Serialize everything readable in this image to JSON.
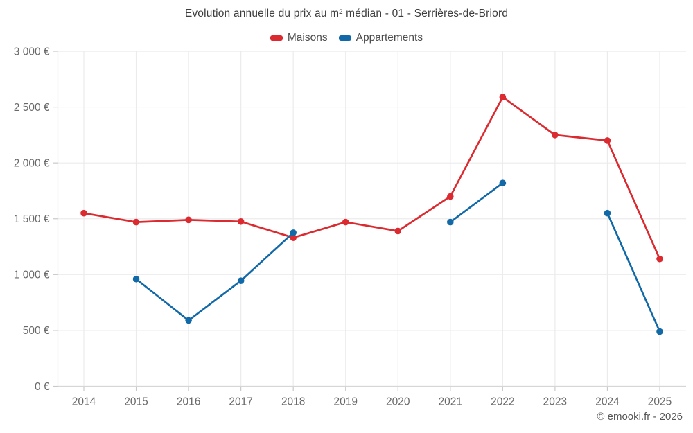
{
  "page": {
    "title": "Evolution annuelle du prix au m² médian - 01 - Serrières-de-Briord",
    "footer": "© emooki.fr - 2026"
  },
  "chart_data": {
    "type": "line",
    "title": "Evolution annuelle du prix au m² médian - 01 - Serrières-de-Briord",
    "categories": [
      "2014",
      "2015",
      "2016",
      "2017",
      "2018",
      "2019",
      "2020",
      "2021",
      "2022",
      "2023",
      "2024",
      "2025"
    ],
    "series": [
      {
        "name": "Maisons",
        "color": "#db2b30",
        "values": [
          1550,
          1470,
          1490,
          1475,
          1330,
          1470,
          1390,
          1700,
          2590,
          2250,
          2200,
          1140
        ]
      },
      {
        "name": "Appartements",
        "color": "#1269a8",
        "values": [
          null,
          960,
          590,
          945,
          1375,
          null,
          null,
          1470,
          1820,
          null,
          1550,
          490
        ]
      }
    ],
    "y_axis": {
      "min": 0,
      "max": 3000,
      "step": 500,
      "unit": "€",
      "tick_labels": [
        "0 €",
        "500 €",
        "1 000 €",
        "1 500 €",
        "2 000 €",
        "2 500 €",
        "3 000 €"
      ]
    },
    "x_axis": {
      "label": "",
      "tick_labels": [
        "2014",
        "2015",
        "2016",
        "2017",
        "2018",
        "2019",
        "2020",
        "2021",
        "2022",
        "2023",
        "2024",
        "2025"
      ]
    },
    "grid": true,
    "legend_position": "top"
  },
  "colors": {
    "background": "#ffffff",
    "grid": "#ebebeb",
    "axis": "#d6d6d6",
    "tick": "#c9c9c9",
    "tick_label": "#696969",
    "title_text": "#3d3d3d",
    "legend_text": "#4c4c4c",
    "footer_text": "#565656",
    "maisons": "#db2b30",
    "appartements": "#1269a8"
  }
}
